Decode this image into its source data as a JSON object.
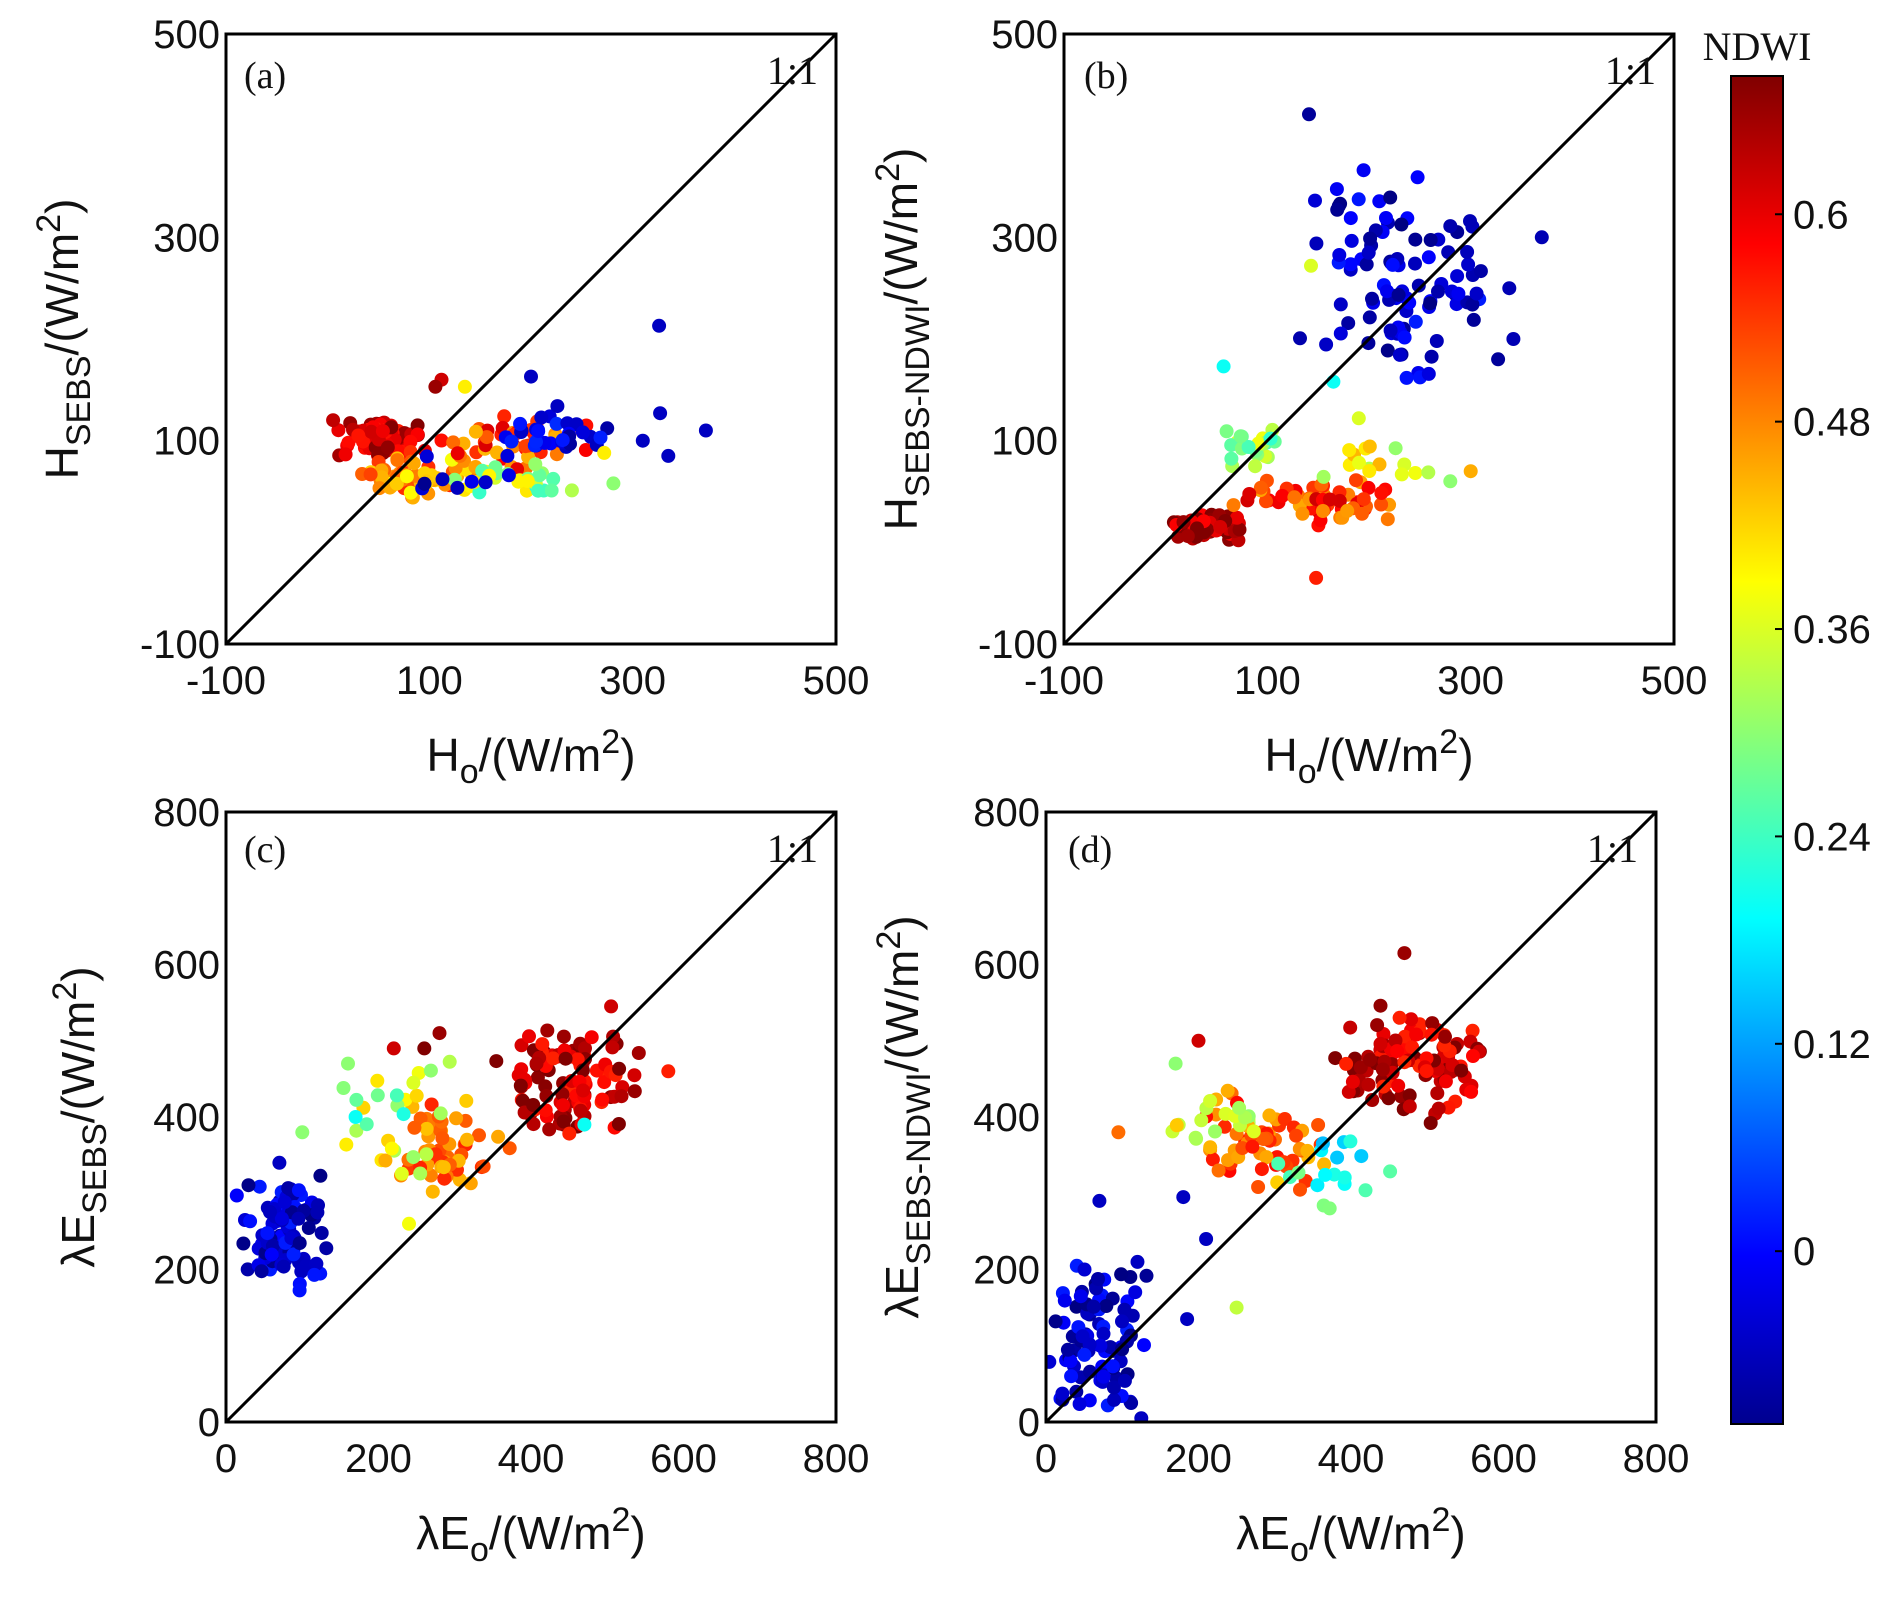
{
  "chart_data": [
    {
      "type": "scatter",
      "panel": "(a)",
      "ref_line": "1:1",
      "xlabel": {
        "main": "H",
        "sub": "o",
        "unit": "/(W/m",
        "sup": "2",
        "close": ")"
      },
      "ylabel": {
        "main": "H",
        "sub": "SEBS",
        "unit": "/(W/m",
        "sup": "2",
        "close": ")"
      },
      "xlim": [
        -100,
        500
      ],
      "ylim": [
        -100,
        500
      ],
      "xticks": [
        "-100",
        "100",
        "300",
        "500"
      ],
      "yticks": [
        "-100",
        "100",
        "300",
        "500"
      ],
      "clusters": [
        {
          "xr": [
            0,
            100
          ],
          "yr": [
            80,
            125
          ],
          "cr": [
            0.56,
            0.68
          ],
          "n": 90
        },
        {
          "xr": [
            20,
            150
          ],
          "yr": [
            40,
            90
          ],
          "cr": [
            0.38,
            0.56
          ],
          "n": 60
        },
        {
          "xr": [
            100,
            260
          ],
          "yr": [
            70,
            130
          ],
          "cr": [
            0.44,
            0.62
          ],
          "n": 45
        },
        {
          "xr": [
            110,
            260
          ],
          "yr": [
            40,
            80
          ],
          "cr": [
            0.22,
            0.42
          ],
          "n": 25
        },
        {
          "xr": [
            170,
            280
          ],
          "yr": [
            80,
            130
          ],
          "cr": [
            -0.08,
            0.04
          ],
          "n": 30
        },
        {
          "xr": [
            80,
            240
          ],
          "yr": [
            35,
            90
          ],
          "cr": [
            -0.1,
            0.0
          ],
          "n": 8
        }
      ],
      "extra_points": [
        [
          326,
          213,
          -0.05
        ],
        [
          372,
          110,
          -0.05
        ],
        [
          327,
          127,
          -0.05
        ],
        [
          335,
          85,
          -0.05
        ],
        [
          310,
          100,
          -0.05
        ],
        [
          200,
          163,
          -0.05
        ],
        [
          226,
          134,
          -0.05
        ],
        [
          112,
          160,
          0.62
        ],
        [
          106,
          153,
          0.66
        ],
        [
          135,
          153,
          0.4
        ],
        [
          281,
          58,
          0.3
        ],
        [
          272,
          88,
          0.4
        ]
      ]
    },
    {
      "type": "scatter",
      "panel": "(b)",
      "ref_line": "1:1",
      "xlabel": {
        "main": "H",
        "sub": "o",
        "unit": "/(W/m",
        "sup": "2",
        "close": ")"
      },
      "ylabel": {
        "main": "H",
        "sub": "SEBS-NDWI",
        "unit": "/(W/m",
        "sup": "2",
        "close": ")"
      },
      "xlim": [
        -100,
        500
      ],
      "ylim": [
        -100,
        500
      ],
      "xticks": [
        "-100",
        "100",
        "300",
        "500"
      ],
      "yticks": [
        "-100",
        "100",
        "300",
        "500"
      ],
      "clusters": [
        {
          "xr": [
            130,
            330
          ],
          "yr": [
            150,
            370
          ],
          "cr": [
            -0.1,
            0.02
          ],
          "n": 100
        },
        {
          "xr": [
            0,
            80
          ],
          "yr": [
            0,
            30
          ],
          "cr": [
            0.58,
            0.7
          ],
          "n": 60
        },
        {
          "xr": [
            60,
            240
          ],
          "yr": [
            15,
            65
          ],
          "cr": [
            0.45,
            0.62
          ],
          "n": 60
        },
        {
          "xr": [
            40,
            120
          ],
          "yr": [
            70,
            115
          ],
          "cr": [
            0.22,
            0.38
          ],
          "n": 22
        },
        {
          "xr": [
            120,
            280
          ],
          "yr": [
            45,
            100
          ],
          "cr": [
            0.3,
            0.46
          ],
          "n": 15
        }
      ],
      "extra_points": [
        [
          141,
          421,
          -0.08
        ],
        [
          370,
          300,
          -0.06
        ],
        [
          338,
          250,
          -0.06
        ],
        [
          327,
          180,
          -0.08
        ],
        [
          342,
          200,
          -0.06
        ],
        [
          143,
          272,
          0.36
        ],
        [
          165,
          158,
          0.2
        ],
        [
          190,
          122,
          0.36
        ],
        [
          148,
          -35,
          0.56
        ],
        [
          57,
          173,
          0.2
        ],
        [
          300,
          70,
          0.45
        ],
        [
          280,
          60,
          0.3
        ]
      ]
    },
    {
      "type": "scatter",
      "panel": "(c)",
      "ref_line": "1:1",
      "xlabel": {
        "main": "λE",
        "sub": "o",
        "unit": "/(W/m",
        "sup": "2",
        "close": ")"
      },
      "ylabel": {
        "main": "λE",
        "sub": "SEBS",
        "unit": "/(W/m",
        "sup": "2",
        "close": ")"
      },
      "xlim": [
        0,
        800
      ],
      "ylim": [
        0,
        800
      ],
      "xticks": [
        "0",
        "200",
        "400",
        "600",
        "800"
      ],
      "yticks": [
        "0",
        "200",
        "400",
        "600",
        "800"
      ],
      "clusters": [
        {
          "xr": [
            5,
            140
          ],
          "yr": [
            160,
            340
          ],
          "cr": [
            -0.1,
            0.02
          ],
          "n": 90
        },
        {
          "xr": [
            340,
            560
          ],
          "yr": [
            370,
            520
          ],
          "cr": [
            0.55,
            0.7
          ],
          "n": 110
        },
        {
          "xr": [
            200,
            380
          ],
          "yr": [
            290,
            430
          ],
          "cr": [
            0.42,
            0.56
          ],
          "n": 55
        },
        {
          "xr": [
            150,
            300
          ],
          "yr": [
            320,
            490
          ],
          "cr": [
            0.3,
            0.45
          ],
          "n": 20
        },
        {
          "xr": [
            120,
            260
          ],
          "yr": [
            360,
            470
          ],
          "cr": [
            0.14,
            0.32
          ],
          "n": 6
        }
      ],
      "extra_points": [
        [
          160,
          470,
          0.3
        ],
        [
          240,
          260,
          0.38
        ],
        [
          505,
          545,
          0.62
        ],
        [
          580,
          460,
          0.56
        ],
        [
          470,
          390,
          0.2
        ],
        [
          260,
          490,
          0.68
        ],
        [
          280,
          510,
          0.66
        ],
        [
          220,
          490,
          0.62
        ],
        [
          70,
          340,
          -0.05
        ],
        [
          100,
          380,
          0.3
        ],
        [
          170,
          400,
          0.2
        ]
      ]
    },
    {
      "type": "scatter",
      "panel": "(d)",
      "ref_line": "1:1",
      "xlabel": {
        "main": "λE",
        "sub": "o",
        "unit": "/(W/m",
        "sup": "2",
        "close": ")"
      },
      "ylabel": {
        "main": "λE",
        "sub": "SEBS-NDWI",
        "unit": "/(W/m",
        "sup": "2",
        "close": ")"
      },
      "xlim": [
        0,
        800
      ],
      "ylim": [
        0,
        800
      ],
      "xticks": [
        "0",
        "200",
        "400",
        "600",
        "800"
      ],
      "yticks": [
        "0",
        "200",
        "400",
        "600",
        "800"
      ],
      "clusters": [
        {
          "xr": [
            0,
            140
          ],
          "yr": [
            0,
            220
          ],
          "cr": [
            -0.1,
            0.02
          ],
          "n": 90
        },
        {
          "xr": [
            360,
            580
          ],
          "yr": [
            390,
            560
          ],
          "cr": [
            0.55,
            0.7
          ],
          "n": 110
        },
        {
          "xr": [
            190,
            380
          ],
          "yr": [
            290,
            440
          ],
          "cr": [
            0.42,
            0.58
          ],
          "n": 60
        },
        {
          "xr": [
            150,
            300
          ],
          "yr": [
            330,
            470
          ],
          "cr": [
            0.3,
            0.45
          ],
          "n": 20
        },
        {
          "xr": [
            280,
            480
          ],
          "yr": [
            270,
            380
          ],
          "cr": [
            0.14,
            0.3
          ],
          "n": 18
        }
      ],
      "extra_points": [
        [
          470,
          615,
          0.66
        ],
        [
          250,
          150,
          0.34
        ],
        [
          185,
          135,
          -0.05
        ],
        [
          210,
          240,
          -0.05
        ],
        [
          180,
          295,
          -0.05
        ],
        [
          95,
          380,
          0.5
        ],
        [
          170,
          470,
          0.3
        ],
        [
          200,
          500,
          0.62
        ],
        [
          560,
          480,
          0.58
        ],
        [
          70,
          290,
          -0.05
        ],
        [
          120,
          210,
          -0.05
        ],
        [
          125,
          5,
          -0.05
        ]
      ]
    }
  ],
  "colorbar": {
    "title": "NDWI",
    "range": [
      -0.1,
      0.68
    ],
    "ticks": [
      "0",
      "0.12",
      "0.24",
      "0.36",
      "0.48",
      "0.6"
    ],
    "tick_values": [
      0,
      0.12,
      0.24,
      0.36,
      0.48,
      0.6
    ],
    "colormap": "jet"
  }
}
